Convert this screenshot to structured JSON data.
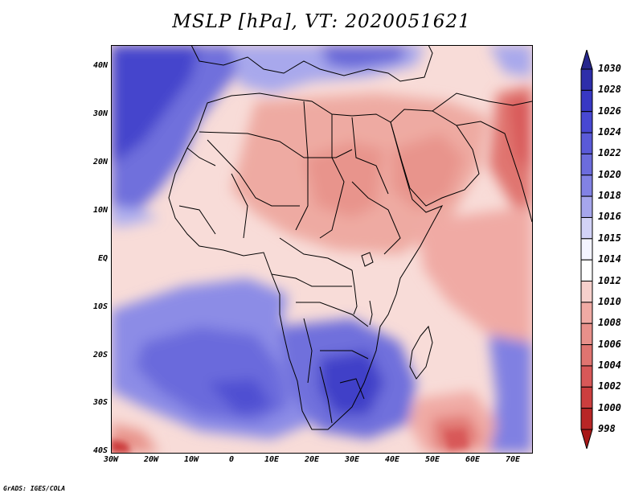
{
  "title": "MSLP [hPa], VT: 2020051621",
  "credit": "GrADS: IGES/COLA",
  "lat_labels": [
    "40N",
    "30N",
    "20N",
    "10N",
    "EQ",
    "10S",
    "20S",
    "30S",
    "40S"
  ],
  "lon_labels": [
    "30W",
    "20W",
    "10W",
    "0",
    "10E",
    "20E",
    "30E",
    "40E",
    "50E",
    "60E",
    "70E"
  ],
  "colorbar": {
    "unit": "hPa",
    "levels": [
      "1030",
      "1028",
      "1026",
      "1024",
      "1022",
      "1020",
      "1018",
      "1016",
      "1015",
      "1014",
      "1012",
      "1010",
      "1008",
      "1006",
      "1004",
      "1002",
      "1000",
      "998"
    ],
    "colors": [
      "#26268c",
      "#2e2eaa",
      "#3838c4",
      "#4848d2",
      "#5a5ad8",
      "#6c6cdc",
      "#8282e4",
      "#a6a6ec",
      "#d2d2f6",
      "#f4f4ff",
      "#ffffff",
      "#f6d0cc",
      "#f0aaa4",
      "#e8908a",
      "#e07470",
      "#d85858",
      "#cc3e3e",
      "#b82626",
      "#a81818"
    ]
  },
  "map": {
    "projection": "lat-lon",
    "lon_range": [
      -30,
      75
    ],
    "lat_range": [
      -40,
      45
    ],
    "features": [
      "continents",
      "country borders",
      "lakes"
    ]
  }
}
